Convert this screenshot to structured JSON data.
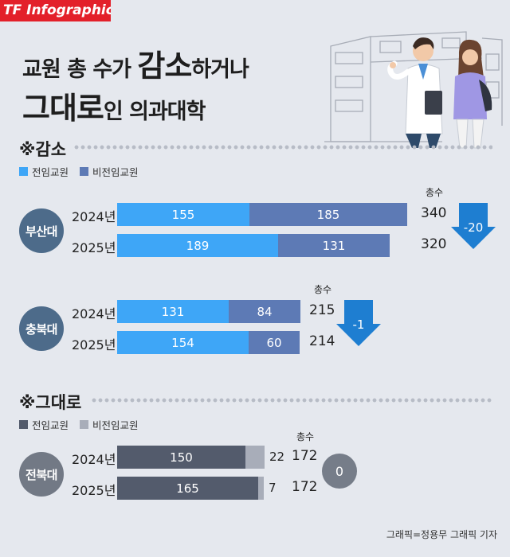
{
  "brand": "TF Infographics",
  "title": {
    "line1_pre": "교원 총 수가 ",
    "line1_big": "감소",
    "line1_post": "하거나",
    "line2_big": "그대로",
    "line2_post": "인 의과대학"
  },
  "colors": {
    "fulltime": "#3ea6f7",
    "parttime": "#5d7ab5",
    "same_fulltime": "#535b6c",
    "same_parttime": "#a8adb9",
    "badge_decrease": "#4d6b8a",
    "badge_same": "#727985",
    "arrow": "#1e7ed1"
  },
  "sections": {
    "decrease": {
      "heading": "※감소",
      "legend": [
        "전임교원",
        "비전임교원"
      ]
    },
    "same": {
      "heading": "※그대로",
      "legend": [
        "전임교원",
        "비전임교원"
      ]
    }
  },
  "total_label": "총수",
  "credit": "그래픽=정용무 그래픽 기자",
  "chart_data": {
    "type": "bar",
    "orientation": "horizontal",
    "stacked": true,
    "groups": [
      {
        "name": "부산대",
        "section": "감소",
        "years": [
          "2024년",
          "2025년"
        ],
        "fulltime": [
          155,
          189
        ],
        "parttime": [
          185,
          131
        ],
        "total": [
          340,
          320
        ],
        "change": "-20"
      },
      {
        "name": "충북대",
        "section": "감소",
        "years": [
          "2024년",
          "2025년"
        ],
        "fulltime": [
          131,
          154
        ],
        "parttime": [
          84,
          60
        ],
        "total": [
          215,
          214
        ],
        "change": "-1"
      },
      {
        "name": "전북대",
        "section": "그대로",
        "years": [
          "2024년",
          "2025년"
        ],
        "fulltime": [
          150,
          165
        ],
        "parttime": [
          22,
          7
        ],
        "total": [
          172,
          172
        ],
        "change": "0"
      }
    ]
  }
}
